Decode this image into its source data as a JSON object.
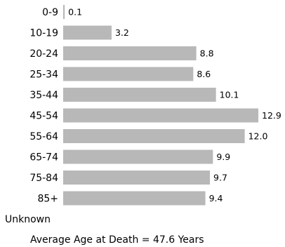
{
  "chart_data": {
    "type": "bar",
    "orientation": "horizontal",
    "categories": [
      "0-9",
      "10-19",
      "20-24",
      "25-34",
      "35-44",
      "45-54",
      "55-64",
      "65-74",
      "75-84",
      "85+",
      "Unknown"
    ],
    "values": [
      0.1,
      3.2,
      8.8,
      8.6,
      10.1,
      12.9,
      12.0,
      9.9,
      9.7,
      9.4,
      null
    ],
    "value_labels": [
      "0.1",
      "3.2",
      "8.8",
      "8.6",
      "10.1",
      "12.9",
      "12.0",
      "9.9",
      "9.7",
      "9.4",
      ""
    ],
    "xlim": [
      0,
      12.9
    ],
    "grid": false,
    "legend": "none",
    "bar_color": "#b8b8b8",
    "footer": "Average Age at Death = 47.6 Years"
  }
}
